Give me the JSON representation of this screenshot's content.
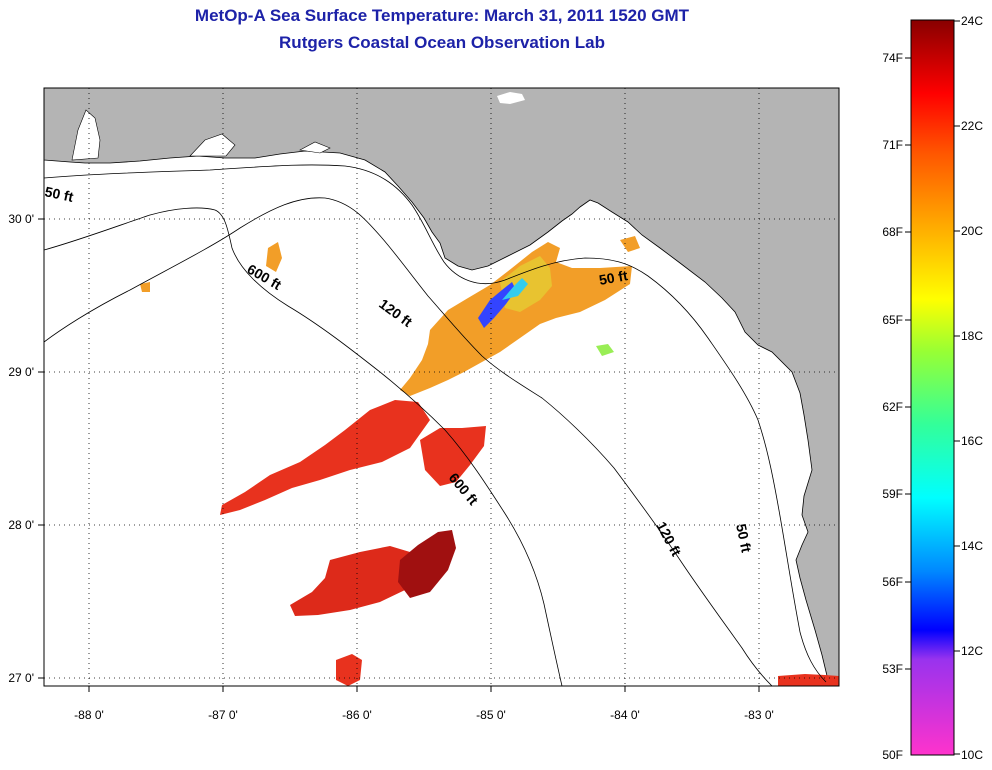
{
  "header": {
    "title": "MetOp-A Sea Surface Temperature:  March 31, 2011 1520 GMT",
    "subtitle": "Rutgers Coastal Ocean Observation Lab"
  },
  "axes": {
    "lon_ticks": [
      "-88 0'",
      "-87 0'",
      "-86 0'",
      "-85 0'",
      "-84 0'",
      "-83 0'"
    ],
    "lat_ticks": [
      "30 0'",
      "29 0'",
      "28 0'",
      "27 0'"
    ]
  },
  "contours": {
    "label_50": "50 ft",
    "label_120": "120 ft",
    "label_600": "600 ft"
  },
  "colorbar": {
    "fahrenheit": [
      "74F",
      "71F",
      "68F",
      "65F",
      "62F",
      "59F",
      "56F",
      "53F",
      "50F"
    ],
    "celsius": [
      "24C",
      "22C",
      "20C",
      "18C",
      "16C",
      "14C",
      "12C",
      "10C"
    ]
  },
  "colors": {
    "land": "#b4b4b4",
    "ocean": "#ffffff",
    "title_text": "#1d22a8"
  }
}
